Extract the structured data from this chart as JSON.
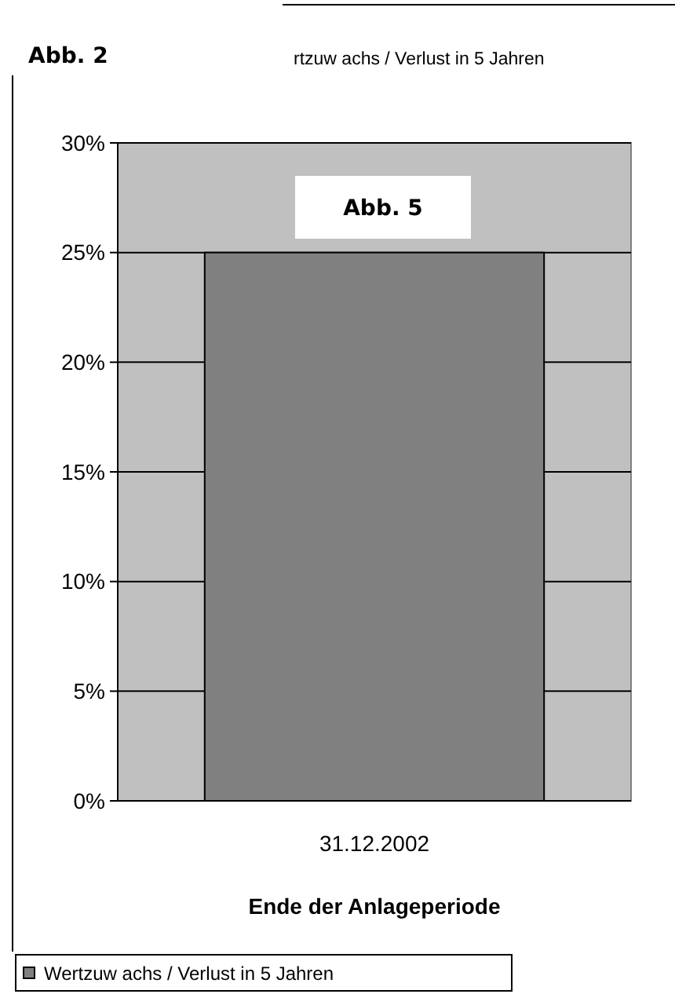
{
  "chart_data": {
    "type": "bar",
    "title": "rtzuw achs / Verlust in 5 Jahren",
    "xlabel": "Ende der Anlageperiode",
    "categories": [
      "31.12.2002"
    ],
    "series": [
      {
        "name": "Wertzuw achs / Verlust in 5 Jahren",
        "color": "#808080",
        "values": [
          25
        ]
      }
    ],
    "ylim": [
      0,
      30
    ],
    "yticks": [
      {
        "value": 0,
        "label": "0%"
      },
      {
        "value": 5,
        "label": "5%"
      },
      {
        "value": 10,
        "label": "10%"
      },
      {
        "value": 15,
        "label": "15%"
      },
      {
        "value": 20,
        "label": "20%"
      },
      {
        "value": 25,
        "label": "25%"
      },
      {
        "value": 30,
        "label": "30%"
      }
    ],
    "grid": "y",
    "legend": "bottom",
    "annotations": [
      "Abb. 2",
      "Abb. 5"
    ]
  }
}
